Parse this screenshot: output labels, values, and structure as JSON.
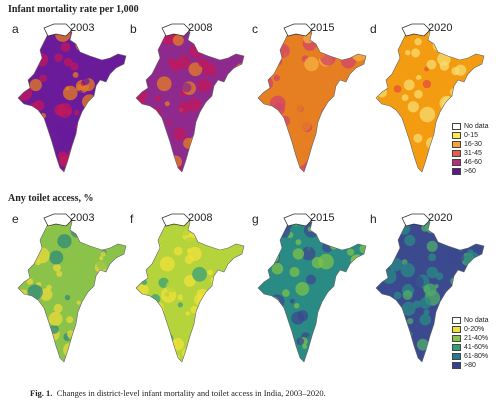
{
  "sections": [
    {
      "title": "Infant mortality rate per 1,000",
      "panels": [
        {
          "letter": "a",
          "year": "2003",
          "dominant": "#6a1b9a",
          "secondary": "#c2185b",
          "accent": "#e67e22"
        },
        {
          "letter": "b",
          "year": "2008",
          "dominant": "#8e2a8e",
          "secondary": "#c2185b",
          "accent": "#e67e22"
        },
        {
          "letter": "c",
          "year": "2015",
          "dominant": "#e67e22",
          "secondary": "#d1456a",
          "accent": "#f5b041"
        },
        {
          "letter": "d",
          "year": "2020",
          "dominant": "#f39c12",
          "secondary": "#f7dc6f",
          "accent": "#e74c3c"
        }
      ],
      "legend": [
        {
          "label": "No data",
          "color": "#ffffff"
        },
        {
          "label": "0-15",
          "color": "#ffe94f"
        },
        {
          "label": "16-30",
          "color": "#f7a335"
        },
        {
          "label": "31-45",
          "color": "#e25f4d"
        },
        {
          "label": "46-60",
          "color": "#b5307a"
        },
        {
          "label": ">60",
          "color": "#5b1a8a"
        }
      ]
    },
    {
      "title": "Any toilet access, %",
      "panels": [
        {
          "letter": "e",
          "year": "2003",
          "dominant": "#8bc34a",
          "secondary": "#e8d93a",
          "accent": "#2e8b7a"
        },
        {
          "letter": "f",
          "year": "2008",
          "dominant": "#b5d33b",
          "secondary": "#f0e13a",
          "accent": "#3aa07a"
        },
        {
          "letter": "g",
          "year": "2015",
          "dominant": "#2a8a84",
          "secondary": "#7cc24a",
          "accent": "#3b4a8f"
        },
        {
          "letter": "h",
          "year": "2020",
          "dominant": "#3b4a8f",
          "secondary": "#2a8a84",
          "accent": "#4fae6a"
        }
      ],
      "legend": [
        {
          "label": "No data",
          "color": "#ffffff"
        },
        {
          "label": "0-20%",
          "color": "#f0e13a"
        },
        {
          "label": "21-40%",
          "color": "#8bc34a"
        },
        {
          "label": "41-60%",
          "color": "#2fa075"
        },
        {
          "label": "61-80%",
          "color": "#2a7a8a"
        },
        {
          "label": ">80",
          "color": "#3b3f8f"
        }
      ]
    }
  ],
  "caption": {
    "label": "Fig. 1.",
    "text": "Changes in district-level infant mortality and toilet access in India, 2003–2020."
  }
}
